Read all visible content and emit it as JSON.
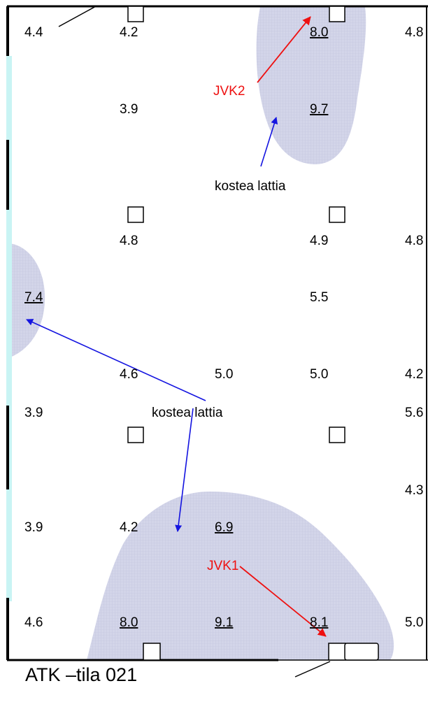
{
  "room_caption": "ATK –tila 021",
  "moisture_note": "kostea lattia",
  "measurements": {
    "r1": [
      "4.4",
      "4.2",
      "8.0",
      "4.8"
    ],
    "r2": [
      "3.9",
      "9.7"
    ],
    "r3": [
      "4.8",
      "4.9",
      "4.8"
    ],
    "r4": [
      "7.4",
      "5.5"
    ],
    "r5": [
      "4.6",
      "5.0",
      "5.0",
      "4.2"
    ],
    "r6": [
      "3.9",
      "5.6"
    ],
    "r7": [
      "4.3"
    ],
    "r8": [
      "3.9",
      "4.2",
      "6.9"
    ],
    "r9": [
      "4.6",
      "8.0",
      "9.1",
      "8.1",
      "5.0"
    ]
  },
  "sensor_points": {
    "jvk1": "JVK1",
    "jvk2": "JVK2"
  },
  "colors": {
    "damp_area": "#cfd1e6",
    "pointer_blue": "#1414e0",
    "pointer_red": "#ee1111",
    "window_edge": "#c9f4f4"
  }
}
